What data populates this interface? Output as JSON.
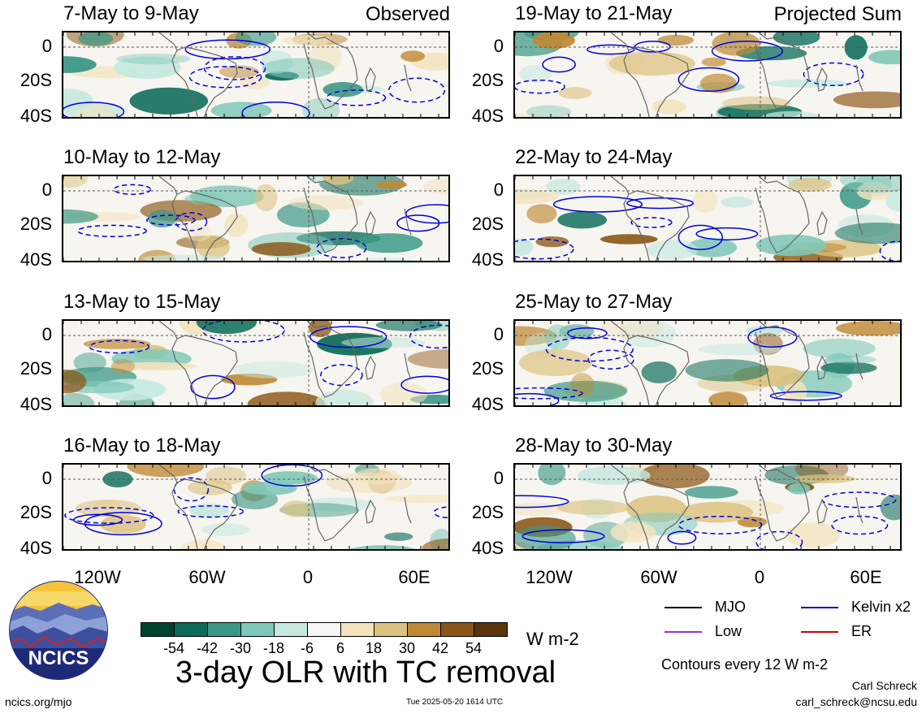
{
  "panels": [
    {
      "title": "7-May to 9-May",
      "tag": "Observed"
    },
    {
      "title": "19-May to 21-May",
      "tag": "Projected Sum"
    },
    {
      "title": "10-May to 12-May",
      "tag": ""
    },
    {
      "title": "22-May to 24-May",
      "tag": ""
    },
    {
      "title": "13-May to 15-May",
      "tag": ""
    },
    {
      "title": "25-May to 27-May",
      "tag": ""
    },
    {
      "title": "16-May to 18-May",
      "tag": ""
    },
    {
      "title": "28-May to 30-May",
      "tag": ""
    }
  ],
  "lat_labels": [
    "0",
    "20S",
    "40S"
  ],
  "lon_labels": [
    "120W",
    "60W",
    "0",
    "60E"
  ],
  "colorbar": {
    "labels": [
      "-54",
      "-42",
      "-30",
      "-18",
      "-6",
      "6",
      "18",
      "30",
      "42",
      "54"
    ],
    "colors": [
      "#00432f",
      "#0b6b58",
      "#3c9886",
      "#7fc8b8",
      "#c5e8df",
      "#f6f6f6",
      "#f3e3bd",
      "#dcc27f",
      "#bf8a36",
      "#8c5716",
      "#5a350b"
    ],
    "units": "W m-2"
  },
  "legend": [
    {
      "label": "MJO",
      "color": "#000000"
    },
    {
      "label": "Kelvin x2",
      "color": "#0000cc"
    },
    {
      "label": "Low",
      "color": "#9933cc"
    },
    {
      "label": "ER",
      "color": "#cc0000"
    }
  ],
  "contour_note": "Contours every 12 W m-2",
  "title": "3-day OLR with TC removal",
  "logo_text": "NCICS",
  "website": "ncics.org/mjo",
  "timestamp": "Tue 2025-05-20 1614 UTC",
  "author": "Carl Schreck",
  "email": "carl_schreck@ncsu.edu"
}
